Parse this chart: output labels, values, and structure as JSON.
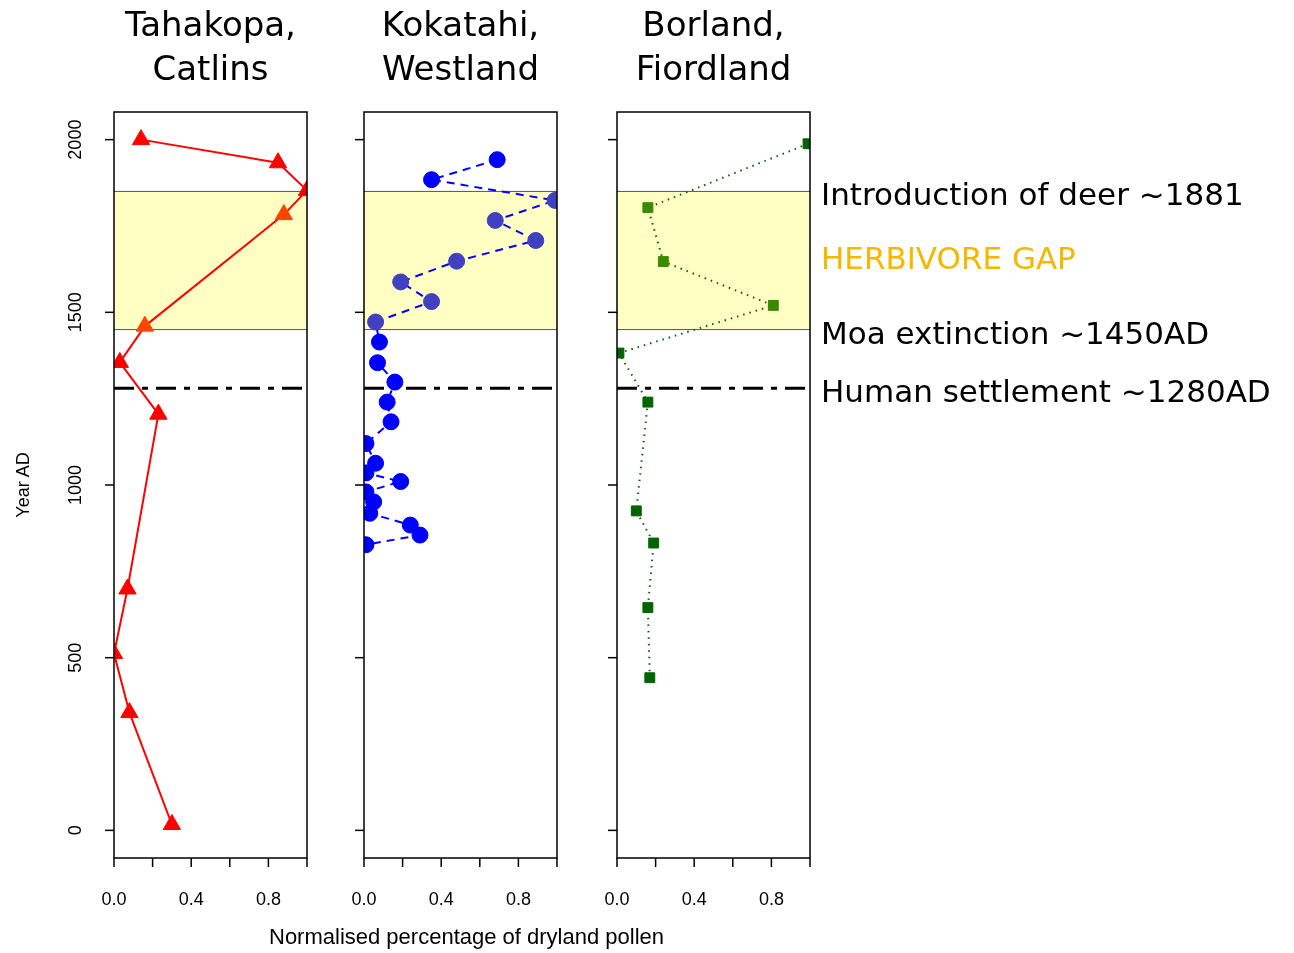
{
  "chart_data": [
    {
      "type": "line",
      "title": "Tahakopa, Catlins",
      "ylabel": "Year AD",
      "xlim": [
        0,
        1
      ],
      "xticks": [
        {
          "value": 0,
          "label": "0.0"
        },
        {
          "value": 0.2,
          "label": null
        },
        {
          "value": 0.4,
          "label": "0.4"
        },
        {
          "value": 0.6,
          "label": null
        },
        {
          "value": 0.8,
          "label": "0.8"
        },
        {
          "value": 1,
          "label": null
        }
      ],
      "ylim": [
        -80,
        2080
      ],
      "yticks": [
        0,
        500,
        1000,
        1500,
        2000
      ],
      "grid": false,
      "legend": false,
      "marker": "triangle",
      "line_style": "solid",
      "bands": [
        {
          "axis": "y",
          "from": 1450,
          "to": 1850,
          "color": "#ffffc4"
        }
      ],
      "ref_lines": [
        {
          "axis": "y",
          "value": 1850,
          "color": "#555555",
          "line_style": "solid"
        },
        {
          "axis": "y",
          "value": 1450,
          "color": "#555555",
          "line_style": "solid"
        },
        {
          "axis": "y",
          "value": 1280,
          "color": "#000000",
          "line_style": "dashdot"
        }
      ],
      "series": [
        {
          "color": "#ff0000",
          "x": [
            0.14,
            0.85,
            1.0,
            0.88,
            0.16,
            0.03,
            0.23,
            0.07,
            0.0,
            0.08,
            0.3
          ],
          "values": [
            2000,
            1933,
            1853,
            1783,
            1460,
            1355,
            1205,
            699,
            512,
            341,
            17
          ],
          "colors": [
            "#ff0000",
            "#ff0000",
            "#ff0000",
            "#ff4500",
            "#ff4500",
            "#ff0000",
            "#ff0000",
            "#ff0000",
            "#ff0000",
            "#ff0000",
            "#ff0000"
          ]
        }
      ]
    },
    {
      "type": "line",
      "title": "Kokatahi, Westland",
      "xlabel": "Normalised percentage of dryland pollen",
      "xlim": [
        0,
        1
      ],
      "xticks": [
        {
          "value": 0,
          "label": "0.0"
        },
        {
          "value": 0.2,
          "label": null
        },
        {
          "value": 0.4,
          "label": "0.4"
        },
        {
          "value": 0.6,
          "label": null
        },
        {
          "value": 0.8,
          "label": "0.8"
        },
        {
          "value": 1,
          "label": null
        }
      ],
      "ylim": [
        -80,
        2080
      ],
      "yticks": [
        0,
        500,
        1000,
        1500,
        2000
      ],
      "tick_labels": "x",
      "grid": false,
      "legend": false,
      "marker": "circle",
      "line_style": "dashed",
      "bands": [
        {
          "axis": "y",
          "from": 1450,
          "to": 1850,
          "color": "#ffffc4"
        }
      ],
      "ref_lines": [
        {
          "axis": "y",
          "value": 1850,
          "color": "#555555",
          "line_style": "solid"
        },
        {
          "axis": "y",
          "value": 1450,
          "color": "#555555",
          "line_style": "solid"
        },
        {
          "axis": "y",
          "value": 1280,
          "color": "#000000",
          "line_style": "dashdot"
        }
      ],
      "series": [
        {
          "color": "#0000ff",
          "x": [
            0.69,
            0.35,
            0.99,
            0.68,
            0.89,
            0.48,
            0.19,
            0.35,
            0.06,
            0.08,
            0.07,
            0.16,
            0.12,
            0.14,
            0.01,
            0.06,
            0.01,
            0.19,
            0.01,
            0.05,
            0.03,
            0.24,
            0.29,
            0.01
          ],
          "values": [
            1942,
            1884,
            1824,
            1766,
            1708,
            1648,
            1588,
            1531,
            1472,
            1414,
            1354,
            1298,
            1240,
            1183,
            1120,
            1063,
            1035,
            1010,
            980,
            951,
            918,
            884,
            855,
            827
          ],
          "colors": [
            "#0000ff",
            "#0000ff",
            "#4040c0",
            "#4040c0",
            "#4040c0",
            "#4040c0",
            "#4040c0",
            "#4040c0",
            "#4040c0",
            "#0000ff",
            "#0000ff",
            "#0000ff",
            "#0000ff",
            "#0000ff",
            "#0000ff",
            "#0000ff",
            "#0000ff",
            "#0000ff",
            "#0000ff",
            "#0000ff",
            "#0000ff",
            "#0000ff",
            "#0000ff",
            "#0000ff"
          ]
        }
      ]
    },
    {
      "type": "line",
      "title": "Borland, Fiordland",
      "xlim": [
        0,
        1
      ],
      "xticks": [
        {
          "value": 0,
          "label": "0.0"
        },
        {
          "value": 0.2,
          "label": null
        },
        {
          "value": 0.4,
          "label": "0.4"
        },
        {
          "value": 0.6,
          "label": null
        },
        {
          "value": 0.8,
          "label": "0.8"
        },
        {
          "value": 1,
          "label": null
        }
      ],
      "ylim": [
        -80,
        2080
      ],
      "yticks": [
        0,
        500,
        1000,
        1500,
        2000
      ],
      "tick_labels": "x",
      "grid": false,
      "legend": false,
      "marker": "square",
      "line_style": "dotted",
      "bands": [
        {
          "axis": "y",
          "from": 1450,
          "to": 1850,
          "color": "#ffffc4",
          "label": "HERBIVORE GAP"
        }
      ],
      "ref_lines": [
        {
          "axis": "y",
          "value": 1850,
          "color": "#555555",
          "line_style": "solid",
          "label": "Introduction of deer ~1881"
        },
        {
          "axis": "y",
          "value": 1450,
          "color": "#555555",
          "line_style": "solid",
          "label": "Moa extinction ~1450AD"
        },
        {
          "axis": "y",
          "value": 1280,
          "color": "#000000",
          "line_style": "dashdot",
          "label": "Human settlement ~1280AD"
        }
      ],
      "series": [
        {
          "color": "#006400",
          "x": [
            0.99,
            0.16,
            0.24,
            0.81,
            0.01,
            0.16,
            0.1,
            0.19,
            0.16,
            0.17
          ],
          "values": [
            1988,
            1803,
            1647,
            1520,
            1382,
            1240,
            925,
            832,
            645,
            442
          ],
          "colors": [
            "#006400",
            "#3a8a00",
            "#3a8a00",
            "#3a8a00",
            "#006400",
            "#006400",
            "#006400",
            "#006400",
            "#006400",
            "#006400"
          ]
        }
      ]
    }
  ]
}
